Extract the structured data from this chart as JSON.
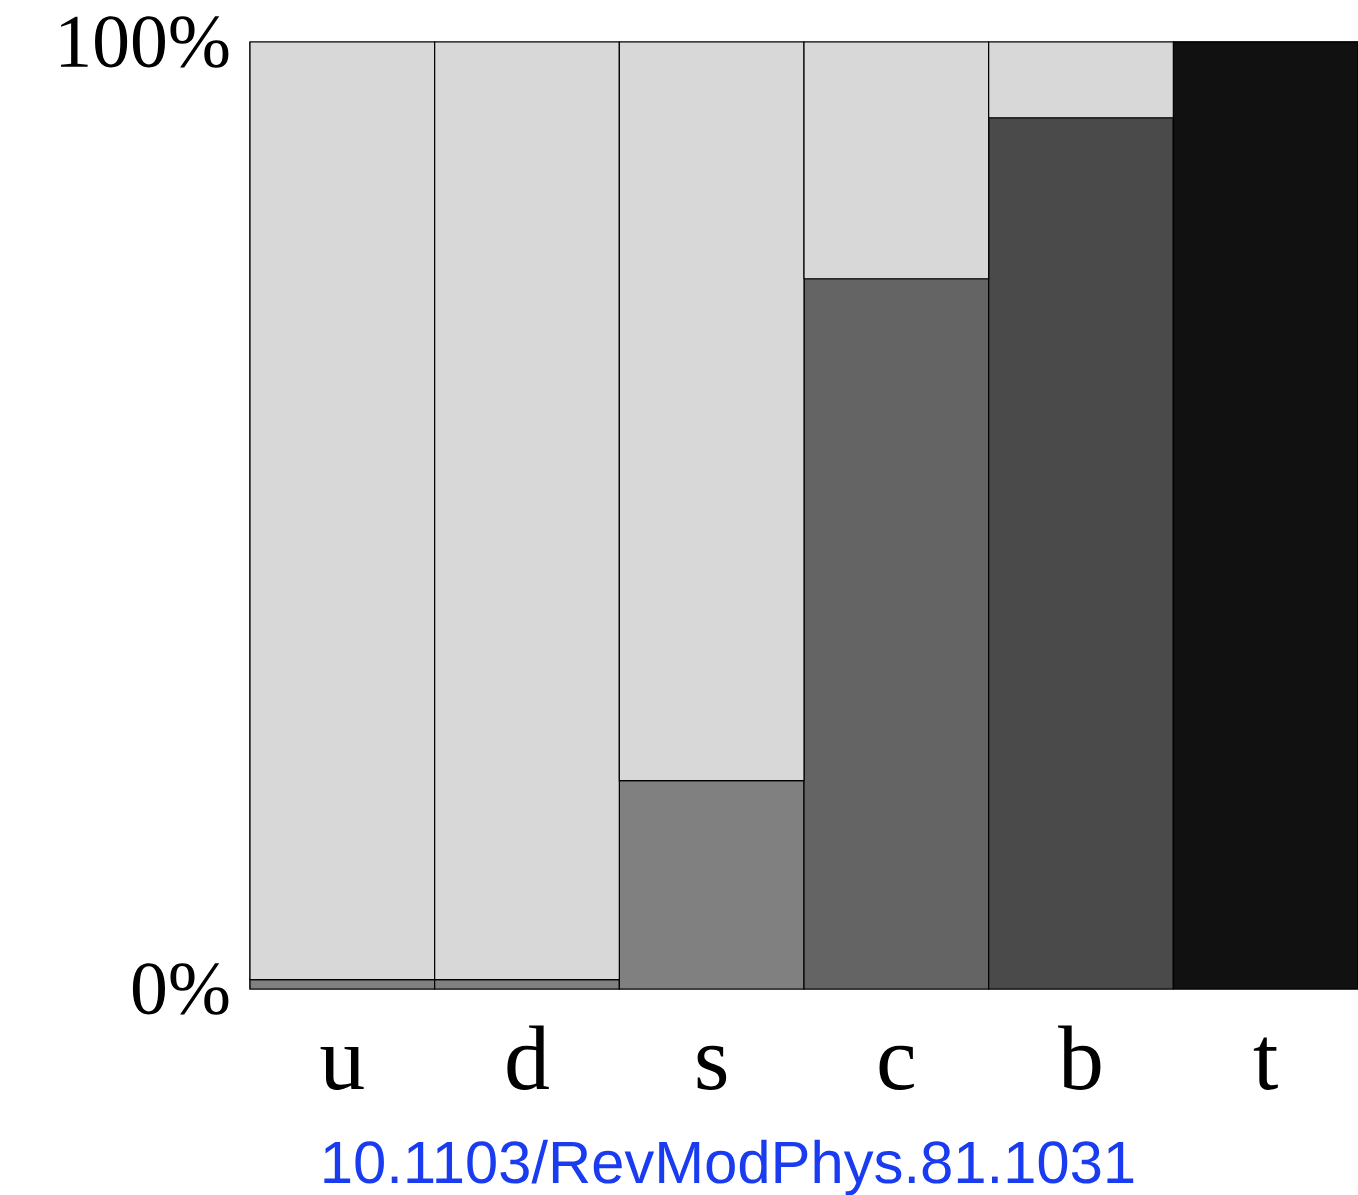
{
  "chart_data": {
    "type": "bar",
    "stacked": true,
    "categories": [
      "u",
      "d",
      "s",
      "c",
      "b",
      "t"
    ],
    "series": [
      {
        "colors": [
          "#808080",
          "#808080",
          "#808080",
          "#646464",
          "#4a4a4a",
          "#111111"
        ],
        "values": [
          1,
          1,
          22,
          75,
          92,
          100
        ]
      },
      {
        "color": "#d8d8d8",
        "values": [
          99,
          99,
          78,
          25,
          8,
          0
        ]
      }
    ],
    "ylim": [
      0,
      100
    ],
    "yticks": [
      {
        "value": 0,
        "label": "0%"
      },
      {
        "value": 100,
        "label": "100%"
      }
    ],
    "annotations": [
      "10.1103/RevModPhys.81.1031"
    ]
  }
}
